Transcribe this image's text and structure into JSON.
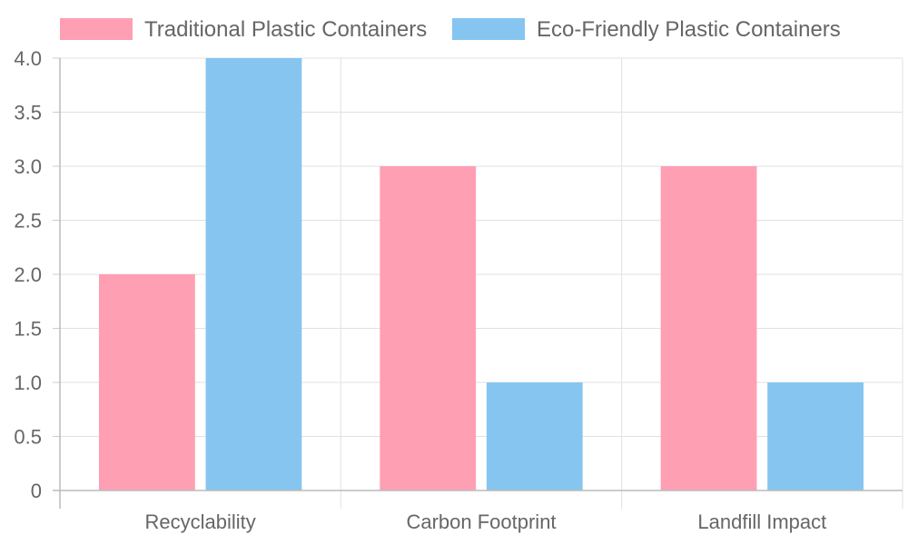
{
  "chart_data": {
    "type": "bar",
    "categories": [
      "Recyclability",
      "Carbon Footprint",
      "Landfill Impact"
    ],
    "series": [
      {
        "name": "Traditional Plastic Containers",
        "values": [
          2,
          3,
          3
        ],
        "color": "#ff9fb4"
      },
      {
        "name": "Eco-Friendly Plastic Containers",
        "values": [
          4,
          1,
          1
        ],
        "color": "#86c5f0"
      }
    ],
    "ylim": [
      0,
      4
    ],
    "yticks": [
      "0",
      "0.5",
      "1.0",
      "1.5",
      "2.0",
      "2.5",
      "3.0",
      "3.5",
      "4.0"
    ],
    "grid": true,
    "legend_position": "top-center"
  }
}
